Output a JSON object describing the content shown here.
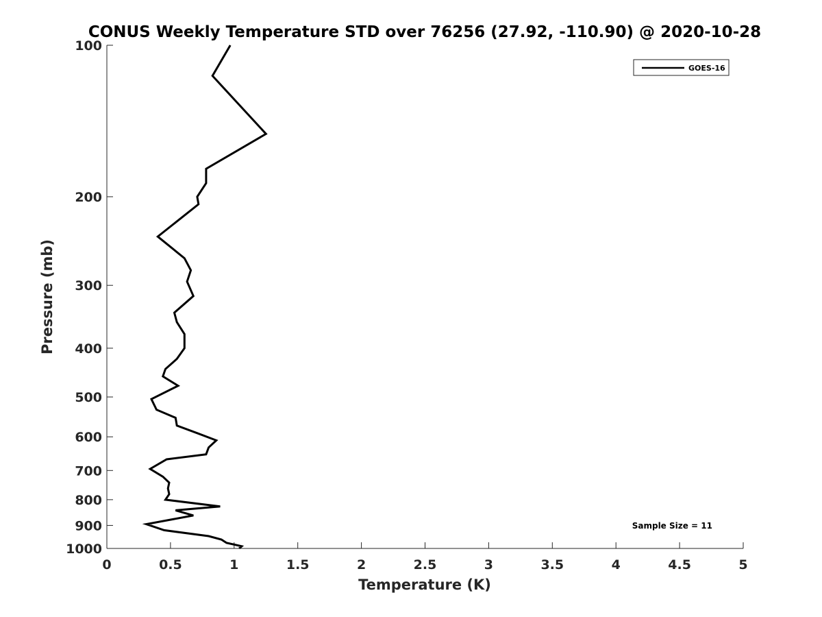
{
  "chart_data": {
    "type": "line",
    "title": "CONUS Weekly Temperature STD over 76256 (27.92, -110.90) @ 2020-10-28",
    "xlabel": "Temperature (K)",
    "ylabel": "Pressure (mb)",
    "xlim": [
      0,
      5
    ],
    "ylim": [
      100,
      1000
    ],
    "yscale": "log",
    "y_reversed": true,
    "xticks": [
      0,
      0.5,
      1,
      1.5,
      2,
      2.5,
      3,
      3.5,
      4,
      4.5,
      5
    ],
    "xtick_labels": [
      "0",
      "0.5",
      "1",
      "1.5",
      "2",
      "2.5",
      "3",
      "3.5",
      "4",
      "4.5",
      "5"
    ],
    "yticks": [
      100,
      200,
      300,
      400,
      500,
      600,
      700,
      800,
      900,
      1000
    ],
    "ytick_labels": [
      "100",
      "200",
      "300",
      "400",
      "500",
      "600",
      "700",
      "800",
      "900",
      "1000"
    ],
    "grid": false,
    "legend": {
      "position": "top-right",
      "entries": [
        "GOES-16"
      ]
    },
    "annotation": "Sample Size = 11",
    "line_color": "#000000",
    "series": [
      {
        "name": "GOES-16",
        "x": [
          0.97,
          0.83,
          1.25,
          0.78,
          0.78,
          0.71,
          0.72,
          0.4,
          0.61,
          0.66,
          0.63,
          0.68,
          0.53,
          0.55,
          0.61,
          0.61,
          0.55,
          0.46,
          0.44,
          0.56,
          0.35,
          0.39,
          0.54,
          0.55,
          0.71,
          0.86,
          0.8,
          0.78,
          0.47,
          0.34,
          0.44,
          0.49,
          0.48,
          0.49,
          0.46,
          0.89,
          0.54,
          0.68,
          0.31,
          0.45,
          0.8,
          0.9,
          0.94,
          1.06,
          1.04
        ],
        "y": [
          100,
          115,
          150,
          176,
          188,
          200,
          207,
          240,
          265,
          280,
          295,
          315,
          340,
          355,
          375,
          400,
          420,
          440,
          455,
          475,
          505,
          530,
          550,
          570,
          590,
          610,
          630,
          650,
          665,
          695,
          720,
          740,
          760,
          780,
          800,
          825,
          840,
          860,
          895,
          920,
          945,
          960,
          975,
          990,
          1000
        ]
      }
    ]
  }
}
